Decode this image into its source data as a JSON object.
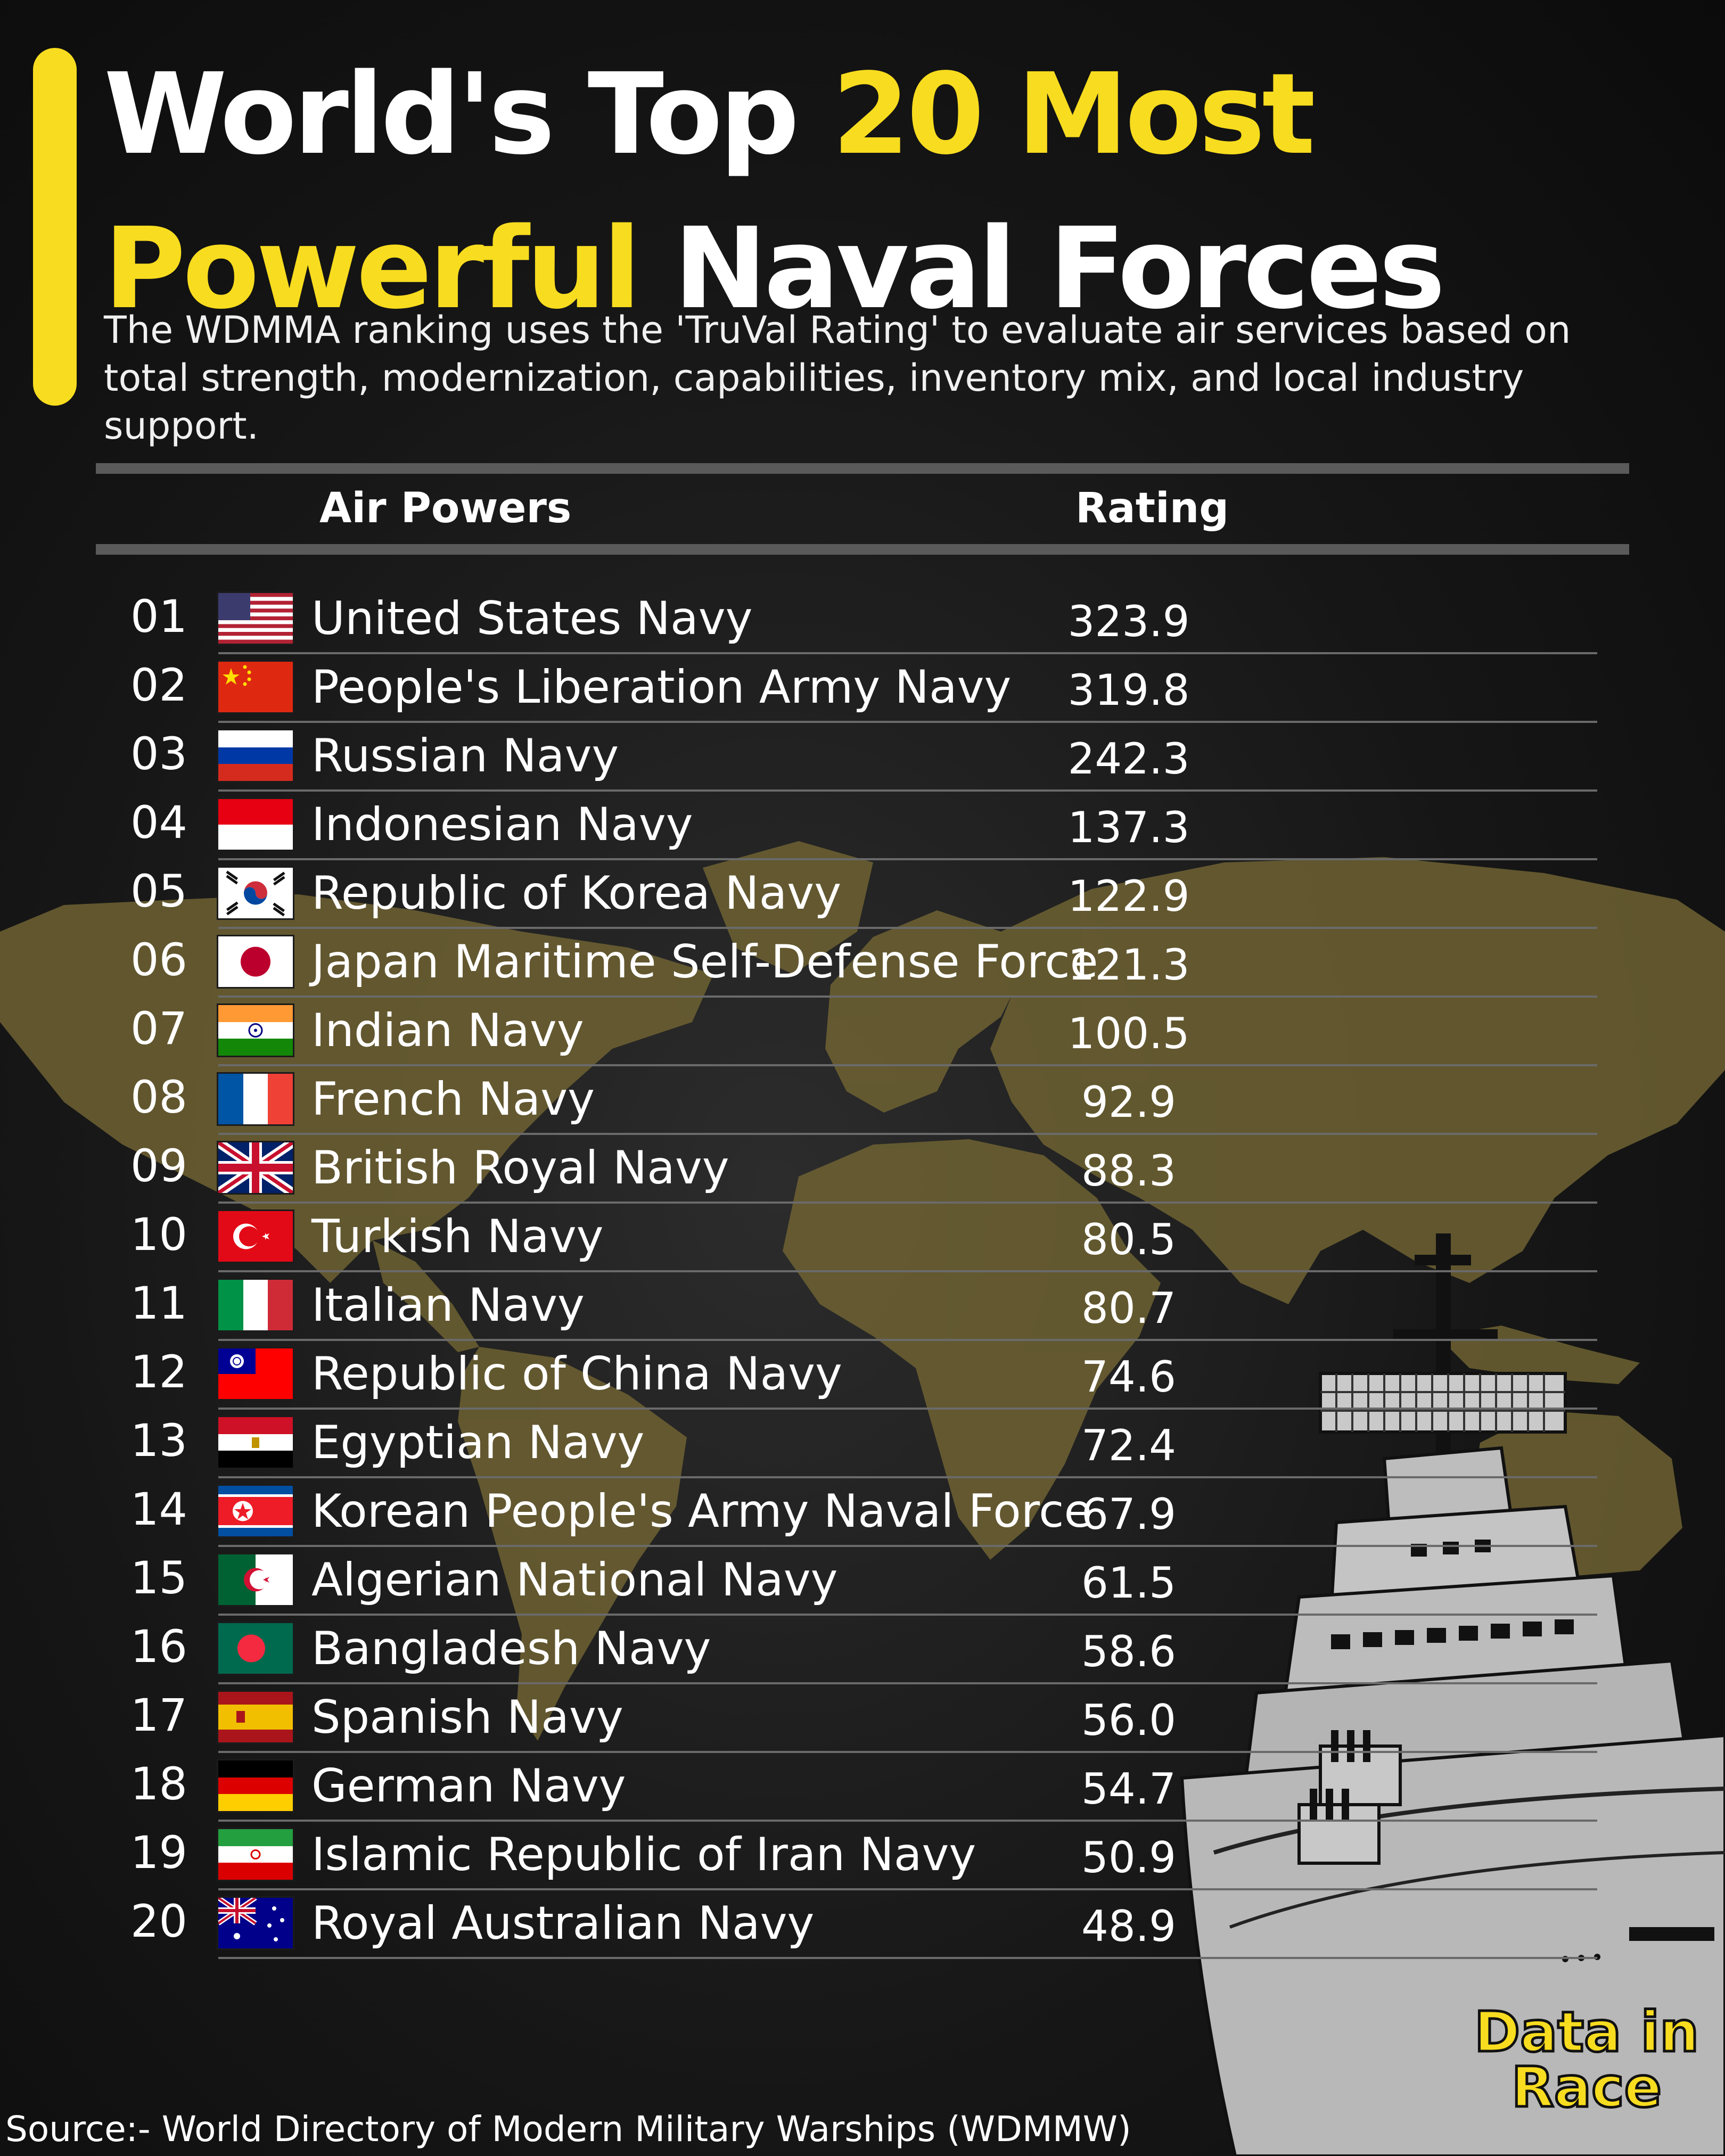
{
  "header": {
    "title_part1": "World's Top ",
    "title_part2": "20 Most",
    "title_part3": "Powerful",
    "title_part4": " Naval Forces",
    "subtitle": "The WDMMA ranking uses the 'TruVal Rating' to evaluate air services based on total strength, modernization, capabilities, inventory mix, and local industry support."
  },
  "table": {
    "col_name": "Air Powers",
    "col_rating": "Rating",
    "rows": [
      {
        "rank": "01",
        "name": "United States Navy",
        "rating": "323.9",
        "flag": "us-flag"
      },
      {
        "rank": "02",
        "name": "People's Liberation Army Navy",
        "rating": "319.8",
        "flag": "china-flag"
      },
      {
        "rank": "03",
        "name": "Russian Navy",
        "rating": "242.3",
        "flag": "russia-flag"
      },
      {
        "rank": "04",
        "name": "Indonesian Navy",
        "rating": "137.3",
        "flag": "indonesia-flag"
      },
      {
        "rank": "05",
        "name": "Republic of Korea Navy",
        "rating": "122.9",
        "flag": "south-korea-flag"
      },
      {
        "rank": "06",
        "name": "Japan Maritime Self-Defense Force",
        "rating": "121.3",
        "flag": "japan-flag"
      },
      {
        "rank": "07",
        "name": "Indian Navy",
        "rating": "100.5",
        "flag": "india-flag"
      },
      {
        "rank": "08",
        "name": "French Navy",
        "rating": "92.9",
        "flag": "france-flag"
      },
      {
        "rank": "09",
        "name": "British Royal Navy",
        "rating": "88.3",
        "flag": "uk-flag"
      },
      {
        "rank": "10",
        "name": "Turkish Navy",
        "rating": "80.5",
        "flag": "turkey-flag"
      },
      {
        "rank": "11",
        "name": "Italian Navy",
        "rating": "80.7",
        "flag": "italy-flag"
      },
      {
        "rank": "12",
        "name": "Republic of China Navy",
        "rating": "74.6",
        "flag": "taiwan-flag"
      },
      {
        "rank": "13",
        "name": "Egyptian Navy",
        "rating": "72.4",
        "flag": "egypt-flag"
      },
      {
        "rank": "14",
        "name": "Korean People's Army Naval Force",
        "rating": "67.9",
        "flag": "north-korea-flag"
      },
      {
        "rank": "15",
        "name": "Algerian National Navy",
        "rating": "61.5",
        "flag": "algeria-flag"
      },
      {
        "rank": "16",
        "name": "Bangladesh Navy",
        "rating": "58.6",
        "flag": "bangladesh-flag"
      },
      {
        "rank": "17",
        "name": "Spanish Navy",
        "rating": "56.0",
        "flag": "spain-flag"
      },
      {
        "rank": "18",
        "name": "German Navy",
        "rating": "54.7",
        "flag": "germany-flag"
      },
      {
        "rank": "19",
        "name": "Islamic Republic of Iran Navy",
        "rating": "50.9",
        "flag": "iran-flag"
      },
      {
        "rank": "20",
        "name": "Royal Australian Navy",
        "rating": "48.9",
        "flag": "australia-flag"
      }
    ]
  },
  "logo": {
    "line1": "Data in",
    "line2": "Race"
  },
  "footer": {
    "source": "Source:- World Directory of Modern Military Warships (WDMMW)"
  },
  "colors": {
    "accent": "#f8dc1f",
    "background": "#1a1a1a",
    "map": "#6e6232",
    "ship": "#b9b9b9"
  }
}
